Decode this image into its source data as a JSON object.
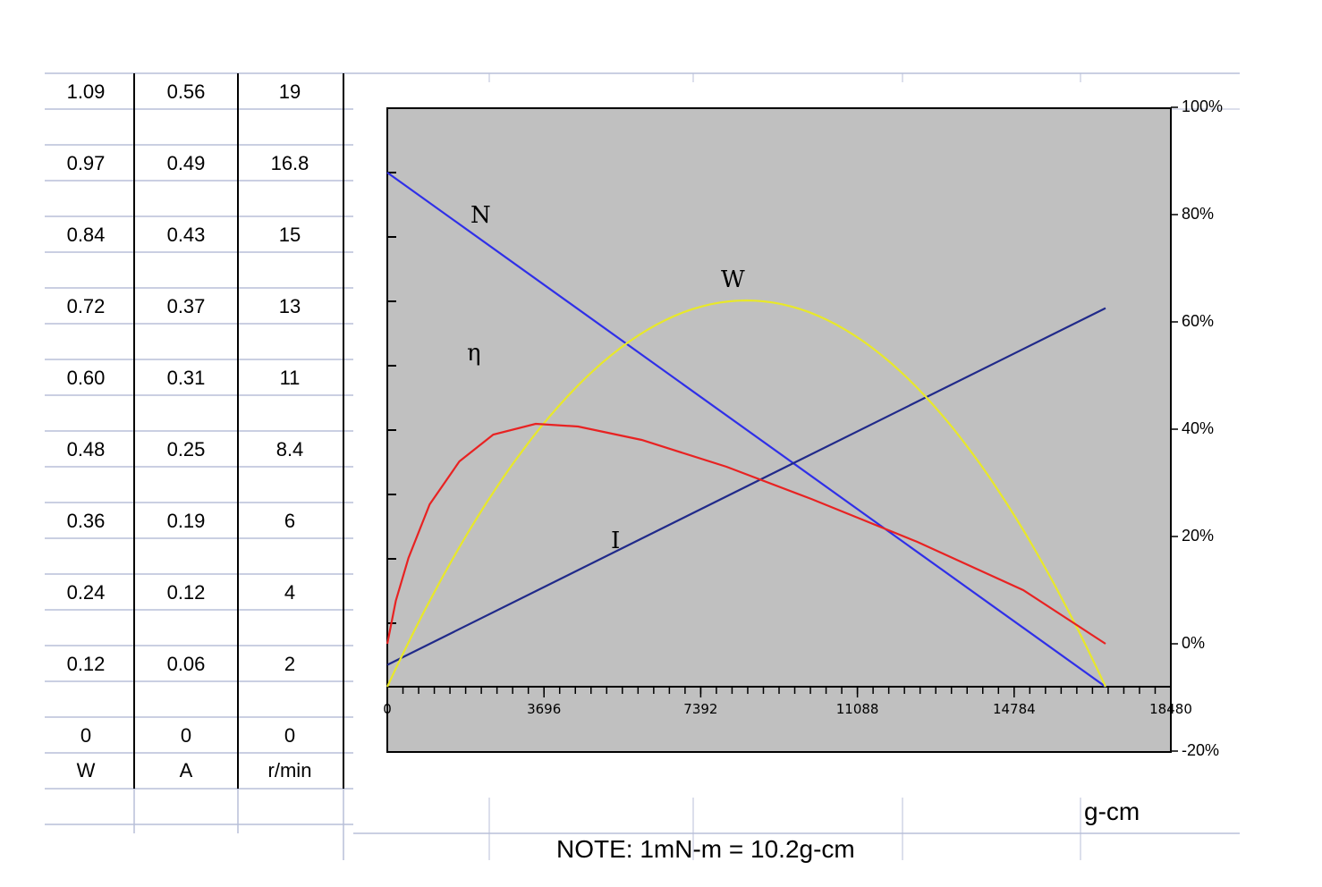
{
  "table": {
    "columns": [
      {
        "values": [
          "1.09",
          "0.97",
          "0.84",
          "0.72",
          "0.60",
          "0.48",
          "0.36",
          "0.24",
          "0.12",
          "0"
        ],
        "unit": "W"
      },
      {
        "values": [
          "0.56",
          "0.49",
          "0.43",
          "0.37",
          "0.31",
          "0.25",
          "0.19",
          "0.12",
          "0.06",
          "0"
        ],
        "unit": "A"
      },
      {
        "values": [
          "19",
          "16.8",
          "15",
          "13",
          "11",
          "8.4",
          "6",
          "4",
          "2",
          "0"
        ],
        "unit": "r/min"
      }
    ]
  },
  "chart_data": {
    "type": "line",
    "x_axis": {
      "ticks": [
        "0",
        "3696",
        "7392",
        "11088",
        "14784",
        "18480"
      ],
      "range": [
        0,
        18480
      ],
      "unit": "g-cm"
    },
    "right_axis": {
      "ticks": [
        "100%",
        "80%",
        "60%",
        "40%",
        "20%",
        "0%",
        "-20%"
      ],
      "range": [
        -20,
        100
      ]
    },
    "series": [
      {
        "name": "N",
        "color": "#2f2fe8",
        "x": [
          0,
          16940
        ],
        "y": [
          19,
          0
        ]
      },
      {
        "name": "I",
        "color": "#202a8a",
        "x": [
          0,
          16940
        ],
        "y": [
          0.03,
          0.52
        ]
      },
      {
        "name": "W",
        "color": "#e8e82a",
        "x": [
          0,
          2117,
          4235,
          6352,
          8470,
          10587,
          12705,
          14822,
          16940
        ],
        "y": [
          0,
          0.47,
          0.82,
          1.02,
          1.09,
          1.02,
          0.82,
          0.47,
          0
        ]
      },
      {
        "name": "η",
        "color": "#e82222",
        "x": [
          0,
          200,
          500,
          1000,
          1700,
          2500,
          3500,
          4500,
          6000,
          8000,
          10000,
          12500,
          15000,
          16940
        ],
        "y": [
          0,
          8,
          16,
          26,
          34,
          39,
          41,
          40.5,
          38,
          33,
          27,
          19,
          10,
          0
        ]
      }
    ],
    "labels": [
      "N",
      "W",
      "η",
      "I"
    ],
    "background": "#c0c0c0"
  },
  "note": "NOTE: 1mN-m = 10.2g-cm"
}
